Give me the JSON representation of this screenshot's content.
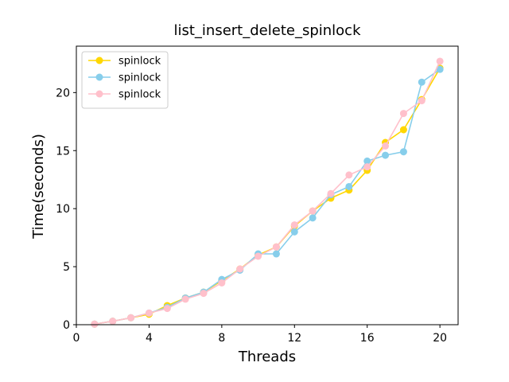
{
  "chart_data": {
    "type": "line",
    "title": "list_insert_delete_spinlock",
    "xlabel": "Threads",
    "ylabel": "Time(seconds)",
    "xlim": [
      0,
      21
    ],
    "ylim": [
      0,
      24
    ],
    "xticks": [
      0,
      4,
      8,
      12,
      16,
      20
    ],
    "yticks": [
      0,
      5,
      10,
      15,
      20
    ],
    "grid": false,
    "legend_position": "top-left",
    "x": [
      1,
      2,
      3,
      4,
      5,
      6,
      7,
      8,
      9,
      10,
      11,
      12,
      13,
      14,
      15,
      16,
      17,
      18,
      19,
      20
    ],
    "series": [
      {
        "name": "spinlock",
        "color": "#FFD700",
        "values": [
          0.05,
          0.3,
          0.6,
          0.9,
          1.65,
          2.3,
          2.8,
          3.8,
          4.8,
          6.0,
          6.7,
          8.5,
          9.8,
          10.9,
          11.6,
          13.3,
          15.7,
          16.8,
          19.4,
          22.1
        ]
      },
      {
        "name": "spinlock",
        "color": "#87CEEB",
        "values": [
          0.05,
          0.3,
          0.6,
          1.0,
          1.5,
          2.3,
          2.8,
          3.9,
          4.7,
          6.1,
          6.1,
          8.0,
          9.2,
          11.2,
          11.9,
          14.1,
          14.6,
          14.9,
          20.9,
          22.0
        ]
      },
      {
        "name": "spinlock",
        "color": "#FFC0CB",
        "values": [
          0.05,
          0.3,
          0.6,
          1.0,
          1.4,
          2.2,
          2.7,
          3.6,
          4.8,
          5.9,
          6.7,
          8.6,
          9.8,
          11.3,
          12.9,
          13.6,
          15.4,
          18.2,
          19.3,
          22.7
        ]
      }
    ]
  }
}
